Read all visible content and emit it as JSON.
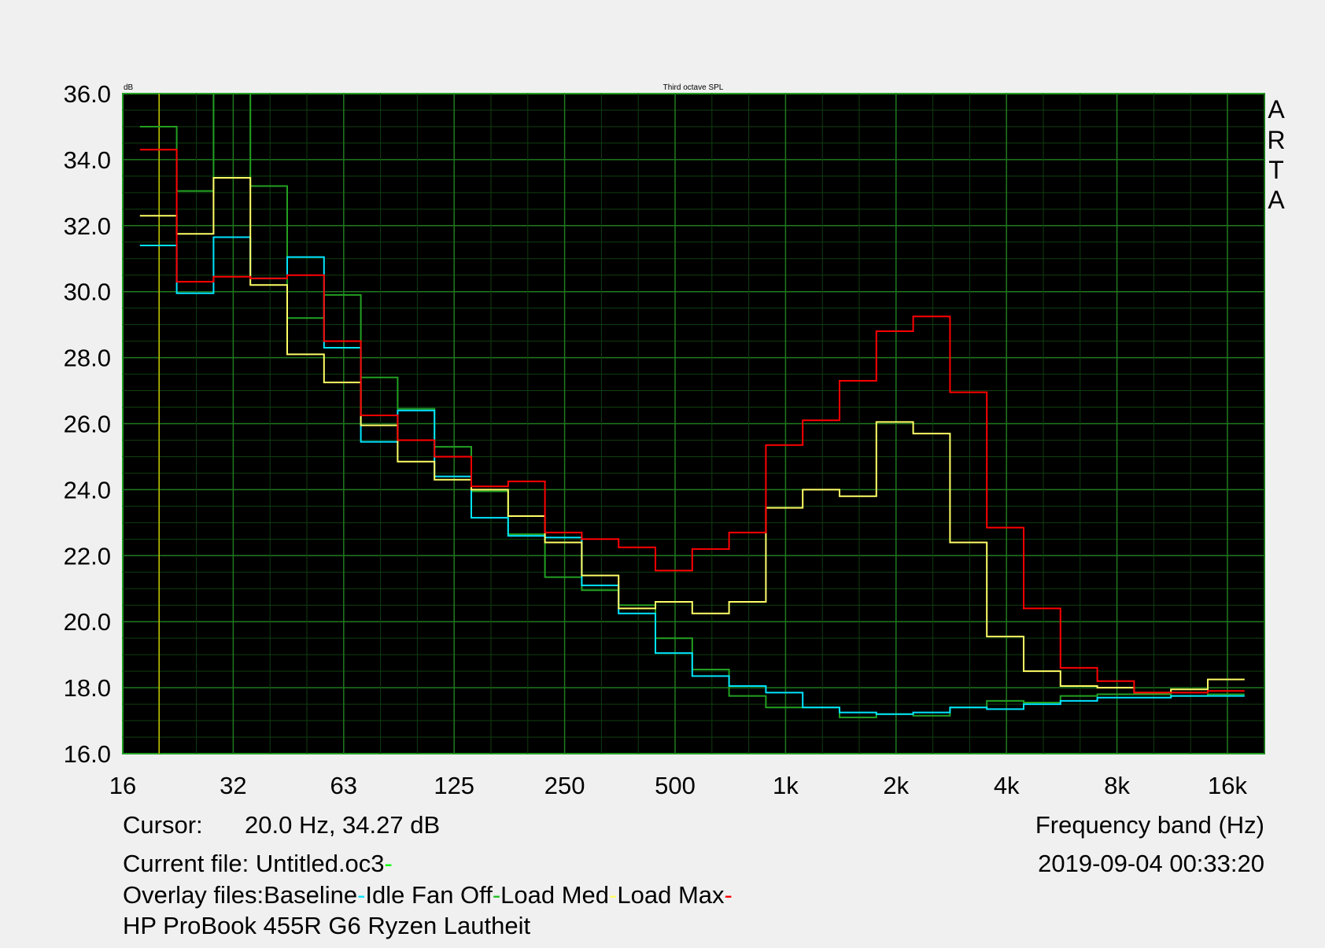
{
  "chart_data": {
    "type": "line",
    "title": "Third octave SPL",
    "ylabel": "dB",
    "xlabel": "Frequency band (Hz)",
    "ylim": [
      16,
      36
    ],
    "xlim_hz": [
      16,
      20000
    ],
    "x_scale": "log",
    "grid": true,
    "y_ticks": [
      "16.0",
      "18.0",
      "20.0",
      "22.0",
      "24.0",
      "26.0",
      "28.0",
      "30.0",
      "32.0",
      "34.0",
      "36.0"
    ],
    "x_ticks": [
      {
        "label": "16",
        "hz": 16
      },
      {
        "label": "32",
        "hz": 32
      },
      {
        "label": "63",
        "hz": 64
      },
      {
        "label": "125",
        "hz": 128
      },
      {
        "label": "250",
        "hz": 256
      },
      {
        "label": "500",
        "hz": 512
      },
      {
        "label": "1k",
        "hz": 1024
      },
      {
        "label": "2k",
        "hz": 2048
      },
      {
        "label": "4k",
        "hz": 4096
      },
      {
        "label": "8k",
        "hz": 8192
      },
      {
        "label": "16k",
        "hz": 16384
      }
    ],
    "x": [
      20,
      25,
      31.5,
      40,
      50,
      63,
      80,
      100,
      125,
      160,
      200,
      250,
      315,
      400,
      500,
      630,
      800,
      1000,
      1250,
      1600,
      2000,
      2500,
      3150,
      4000,
      5000,
      6300,
      8000,
      10000,
      12500,
      16000
    ],
    "series": [
      {
        "name": "Idle Fan Off",
        "color": "#22a022",
        "values": [
          35.0,
          33.05,
          37.0,
          33.2,
          29.2,
          29.9,
          27.4,
          26.45,
          25.3,
          23.95,
          22.65,
          21.35,
          20.95,
          20.5,
          19.5,
          18.55,
          17.75,
          17.4,
          17.4,
          17.1,
          17.2,
          17.15,
          17.4,
          17.6,
          17.55,
          17.75,
          17.8,
          17.8,
          17.75,
          17.8
        ]
      },
      {
        "name": "Baseline",
        "color": "#00e5ff",
        "values": [
          31.4,
          29.95,
          31.65,
          30.4,
          31.05,
          28.3,
          25.45,
          26.4,
          24.4,
          23.15,
          22.6,
          22.55,
          21.1,
          20.25,
          19.05,
          18.35,
          18.05,
          17.85,
          17.4,
          17.25,
          17.2,
          17.25,
          17.4,
          17.35,
          17.5,
          17.6,
          17.7,
          17.7,
          17.75,
          17.75
        ]
      },
      {
        "name": "Load Med",
        "color": "#ffff66",
        "values": [
          32.3,
          31.75,
          33.45,
          30.2,
          28.1,
          27.25,
          25.95,
          24.85,
          24.3,
          24.0,
          23.2,
          22.4,
          21.4,
          20.4,
          20.6,
          20.25,
          20.6,
          23.45,
          24.0,
          23.8,
          26.05,
          25.7,
          22.4,
          19.55,
          18.5,
          18.05,
          18.0,
          17.85,
          17.95,
          18.25
        ]
      },
      {
        "name": "Load Max",
        "color": "#ff0000",
        "values": [
          34.3,
          30.3,
          30.45,
          30.4,
          30.5,
          28.5,
          26.25,
          25.5,
          25.0,
          24.1,
          24.25,
          22.7,
          22.5,
          22.25,
          21.55,
          22.2,
          22.7,
          25.35,
          26.1,
          27.3,
          28.8,
          29.25,
          26.95,
          22.85,
          20.4,
          18.6,
          18.2,
          17.85,
          17.85,
          17.9
        ]
      }
    ],
    "cursor_hz": 20,
    "cursor_color": "#c8c800"
  },
  "info": {
    "cursor_label": "Cursor:",
    "cursor_value": "20.0 Hz, 34.27 dB",
    "current_file": "Current file: Untitled.oc3",
    "current_file_color": "#00ff00",
    "overlay_label": "Overlay files:",
    "overlays": [
      {
        "name": "Baseline",
        "color": "#00e5ff"
      },
      {
        "name": "Idle Fan Off",
        "color": "#22c022"
      },
      {
        "name": "Load Med",
        "color": "#ffff66"
      },
      {
        "name": "Load Max",
        "color": "#ff0000"
      }
    ],
    "description": "HP ProBook 455R G6 Ryzen Lautheit",
    "date": "2019-09-04   00:33:20",
    "brand": [
      "A",
      "R",
      "T",
      "A"
    ]
  }
}
